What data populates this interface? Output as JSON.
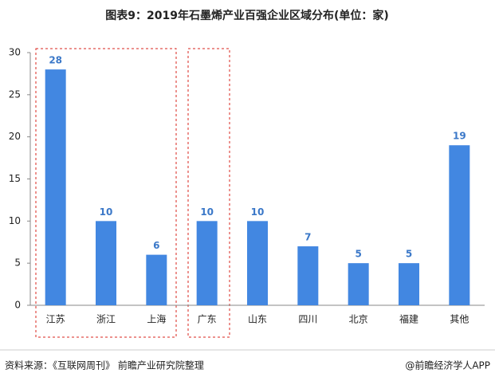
{
  "chart_data": {
    "type": "bar",
    "title": "图表9：2019年石墨烯产业百强企业区域分布(单位：家)",
    "categories": [
      "江苏",
      "浙江",
      "上海",
      "广东",
      "山东",
      "四川",
      "北京",
      "福建",
      "其他"
    ],
    "values": [
      28,
      10,
      6,
      10,
      10,
      7,
      5,
      5,
      19
    ],
    "color": "#4287e1",
    "label_color": "#3b78c8",
    "ylim": [
      0,
      30
    ],
    "yticks": [
      0,
      5,
      10,
      15,
      20,
      25,
      30
    ],
    "grid": false
  },
  "footer": {
    "source": "资料来源：《互联网周刊》 前瞻产业研究院整理",
    "credit": "@前瞻经济学人APP"
  }
}
